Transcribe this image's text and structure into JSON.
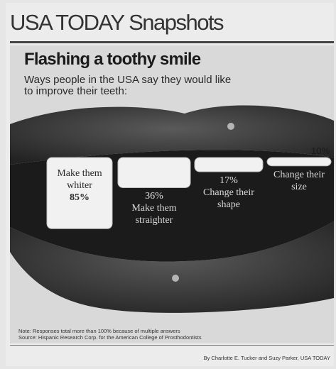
{
  "masthead": "USA TODAY Snapshots",
  "chart_data": {
    "type": "bar",
    "title": "Flashing a toothy smile",
    "subtitle": "Ways people in the USA say they would like to improve their teeth:",
    "categories": [
      "Make them whiter",
      "Make them straighter",
      "Change their shape",
      "Change their size"
    ],
    "values": [
      85,
      36,
      17,
      10
    ],
    "value_labels": [
      "85%",
      "36%",
      "17%",
      "10%"
    ],
    "ylim": [
      0,
      100
    ],
    "xlabel": "",
    "ylabel": "",
    "grid": false
  },
  "note": "Note: Responses total more than 100% because of multiple answers",
  "source": "Source: Hispanic Research Corp. for the American College of Prosthodontists",
  "byline": "By Charlotte E. Tucker and Suzy Parker, USA TODAY",
  "colors": {
    "lip": "#3a3a3a",
    "mouth_interior": "#1b1b1b",
    "tooth": "#f1f1f1"
  }
}
